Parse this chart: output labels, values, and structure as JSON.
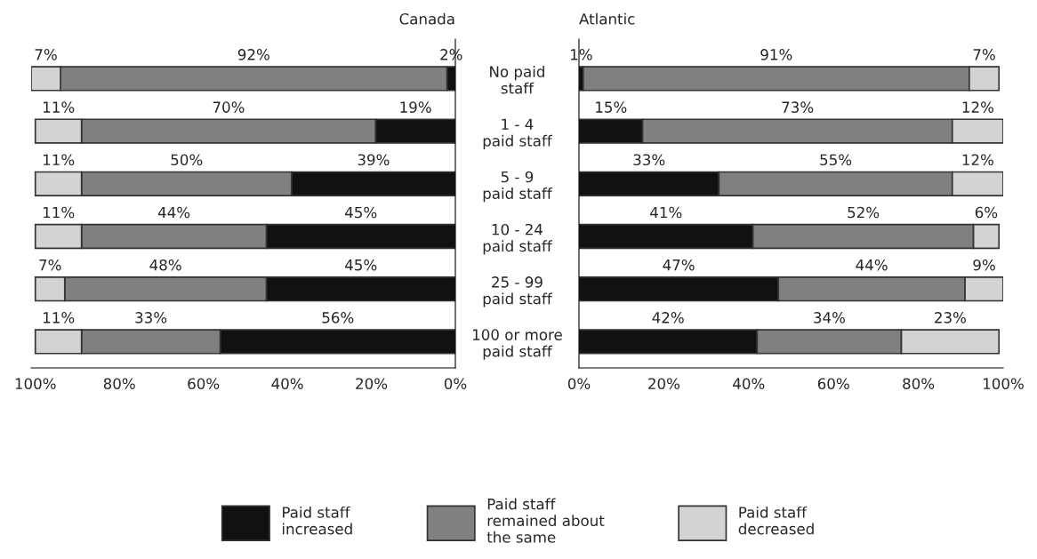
{
  "chart_data": [
    {
      "type": "bar",
      "title": "Canada",
      "orientation": "horizontal",
      "stacked": true,
      "legend": "bottom",
      "xlim": [
        101,
        0
      ],
      "xticks": [
        {
          "value": 100,
          "label": "100%"
        },
        {
          "value": 80,
          "label": "80%"
        },
        {
          "value": 60,
          "label": "60%"
        },
        {
          "value": 40,
          "label": "40%"
        },
        {
          "value": 20,
          "label": "20%"
        },
        {
          "value": 0,
          "label": "0%"
        }
      ],
      "categories": [
        "No paid\nstaff",
        "1 - 4\npaid staff",
        "5 - 9\npaid staff",
        "10 - 24\npaid staff",
        "25 - 99\npaid staff",
        "100 or more\npaid staff"
      ],
      "series": [
        {
          "name": "Paid staff\nincreased",
          "color": "#111111",
          "values": [
            2,
            19,
            39,
            45,
            45,
            56
          ],
          "value_labels": [
            "2%",
            "19%",
            "39%",
            "45%",
            "45%",
            "56%"
          ]
        },
        {
          "name": "Paid staff\nremained about\nthe same",
          "color": "#808080",
          "values": [
            92,
            70,
            50,
            44,
            48,
            33
          ],
          "value_labels": [
            "92%",
            "70%",
            "50%",
            "44%",
            "48%",
            "33%"
          ]
        },
        {
          "name": "Paid staff\ndecreased",
          "color": "#d1d3d4",
          "values": [
            7,
            11,
            11,
            11,
            7,
            11
          ],
          "value_labels": [
            "7%",
            "11%",
            "11%",
            "11%",
            "7%",
            "11%"
          ]
        }
      ]
    },
    {
      "type": "bar",
      "title": "Atlantic",
      "orientation": "horizontal",
      "stacked": true,
      "tick_labels": "x",
      "xlim": [
        0,
        100
      ],
      "xticks": [
        {
          "value": 0,
          "label": "0%"
        },
        {
          "value": 20,
          "label": "20%"
        },
        {
          "value": 40,
          "label": "40%"
        },
        {
          "value": 60,
          "label": "60%"
        },
        {
          "value": 80,
          "label": "80%"
        },
        {
          "value": 100,
          "label": "100%"
        }
      ],
      "categories": [
        null,
        null,
        null,
        null,
        null,
        null
      ],
      "series": [
        {
          "color": "#111111",
          "values": [
            1,
            15,
            33,
            41,
            47,
            42
          ],
          "value_labels": [
            "1%",
            "15%",
            "33%",
            "41%",
            "47%",
            "42%"
          ]
        },
        {
          "color": "#808080",
          "values": [
            91,
            73,
            55,
            52,
            44,
            34
          ],
          "value_labels": [
            "91%",
            "73%",
            "55%",
            "52%",
            "44%",
            "34%"
          ]
        },
        {
          "color": "#d1d3d4",
          "values": [
            7,
            12,
            12,
            6,
            9,
            23
          ],
          "value_labels": [
            "7%",
            "12%",
            "12%",
            "6%",
            "9%",
            "23%"
          ]
        }
      ]
    }
  ]
}
